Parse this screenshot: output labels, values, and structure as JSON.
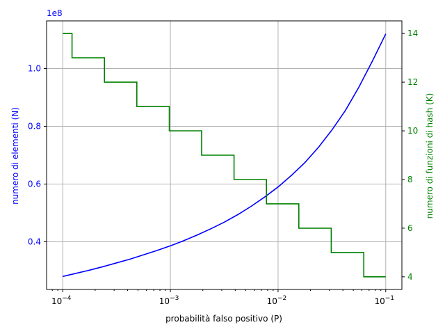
{
  "chart_data": {
    "type": "line",
    "xlabel": "probabilità falso positivo (P)",
    "x_scale": "log",
    "xlim": [
      0.0001,
      0.1
    ],
    "x_ticks": [
      {
        "value": 0.0001,
        "base": "10",
        "exp": "−4"
      },
      {
        "value": 0.001,
        "base": "10",
        "exp": "−3"
      },
      {
        "value": 0.01,
        "base": "10",
        "exp": "−2"
      },
      {
        "value": 0.1,
        "base": "10",
        "exp": "−1"
      }
    ],
    "grid": true,
    "left_axis": {
      "label": "numero di elementi (N)",
      "offset_text": "1e8",
      "color": "#0000ff",
      "ylim": [
        0.235,
        1.165
      ],
      "ticks": [
        "0.4",
        "0.6",
        "0.8",
        "1.0"
      ]
    },
    "right_axis": {
      "label": "numero di funzioni di hash (K)",
      "color": "#008000",
      "ylim": [
        3.48,
        14.52
      ],
      "ticks": [
        "4",
        "6",
        "8",
        "10",
        "12",
        "14"
      ]
    },
    "series": [
      {
        "axis": "left",
        "color": "#0000ff",
        "x": [
          0.0001,
          0.000133,
          0.000178,
          0.000237,
          0.000316,
          0.000422,
          0.000562,
          0.00075,
          0.001,
          0.00133,
          0.00178,
          0.00237,
          0.00316,
          0.00422,
          0.00562,
          0.0075,
          0.01,
          0.0133,
          0.0178,
          0.0237,
          0.0316,
          0.0422,
          0.0562,
          0.075,
          0.1
        ],
        "y": [
          0.28,
          0.291,
          0.302,
          0.314,
          0.327,
          0.34,
          0.355,
          0.37,
          0.386,
          0.404,
          0.424,
          0.445,
          0.468,
          0.494,
          0.523,
          0.555,
          0.59,
          0.63,
          0.675,
          0.727,
          0.787,
          0.855,
          0.935,
          1.025,
          1.12
        ]
      },
      {
        "axis": "right",
        "color": "#008000",
        "type": "step",
        "x": [
          0.0001,
          0.000122,
          0.000122,
          0.000244,
          0.000244,
          0.000488,
          0.000488,
          0.000977,
          0.000977,
          0.00195,
          0.00195,
          0.0039,
          0.0039,
          0.0078,
          0.0078,
          0.0156,
          0.0156,
          0.0312,
          0.0312,
          0.0625,
          0.0625,
          0.1
        ],
        "y": [
          14,
          14,
          13,
          13,
          12,
          12,
          11,
          11,
          10,
          10,
          9,
          9,
          8,
          8,
          7,
          7,
          6,
          6,
          5,
          5,
          4,
          4
        ]
      }
    ]
  }
}
